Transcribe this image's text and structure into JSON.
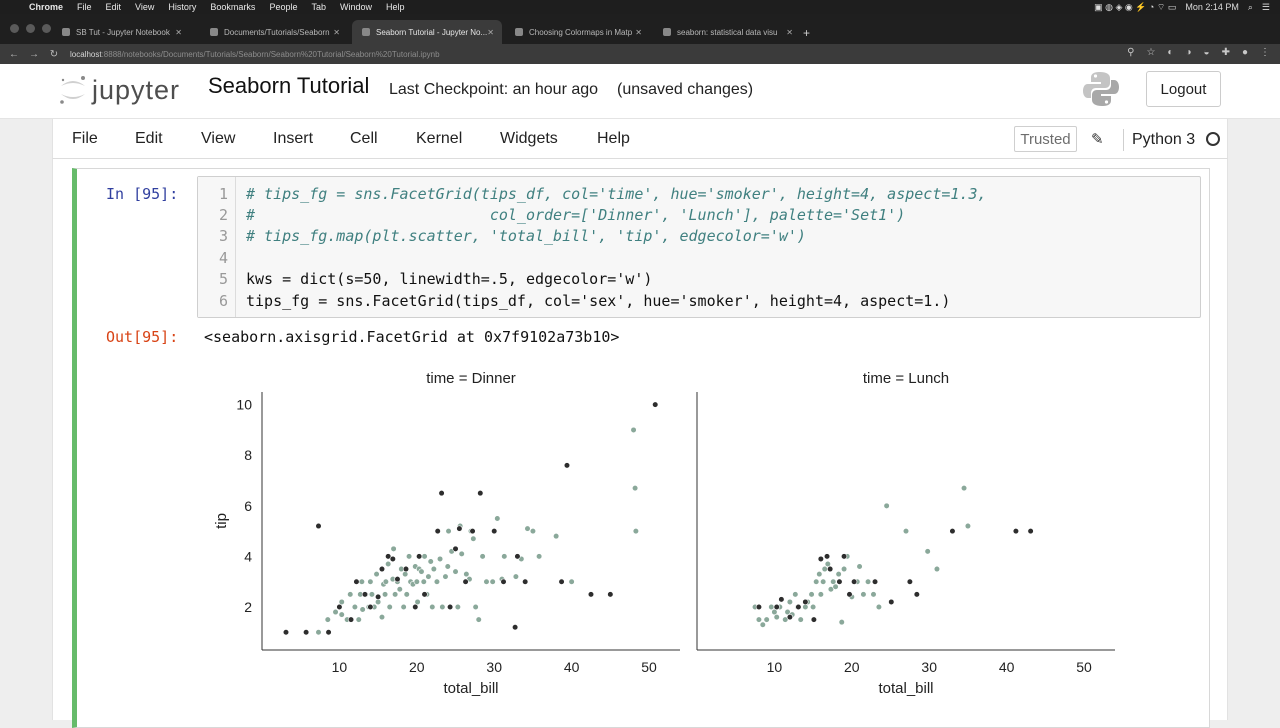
{
  "macbar": {
    "app": "Chrome",
    "menus": [
      "File",
      "Edit",
      "View",
      "History",
      "Bookmarks",
      "People",
      "Tab",
      "Window",
      "Help"
    ],
    "clock": "Mon 2:14 PM"
  },
  "tabs": [
    {
      "label": "SB Tut - Jupyter Notebook"
    },
    {
      "label": "Documents/Tutorials/Seaborn"
    },
    {
      "label": "Seaborn Tutorial - Jupyter No..."
    },
    {
      "label": "Choosing Colormaps in Matp"
    },
    {
      "label": "seaborn: statistical data visu"
    }
  ],
  "address": {
    "host": "localhost",
    "path": ":8888/notebooks/Documents/Tutorials/Seaborn/Seaborn%20Tutorial/Seaborn%20Tutorial.ipynb"
  },
  "header": {
    "logo_text": "jupyter",
    "notebook_title": "Seaborn Tutorial",
    "checkpoint": "Last Checkpoint: an hour ago",
    "unsaved": "(unsaved changes)",
    "logout": "Logout"
  },
  "menu": {
    "items": [
      "File",
      "Edit",
      "View",
      "Insert",
      "Cell",
      "Kernel",
      "Widgets",
      "Help"
    ],
    "trusted": "Trusted",
    "kernel_name": "Python 3"
  },
  "cell": {
    "in_prompt": "In [95]:",
    "out_prompt": "Out[95]:",
    "lines": [
      {
        "n": "1",
        "text": "# tips_fg = sns.FacetGrid(tips_df, col='time', hue='smoker', height=4, aspect=1.3,",
        "comment": true
      },
      {
        "n": "2",
        "text": "#                          col_order=['Dinner', 'Lunch'], palette='Set1')",
        "comment": true
      },
      {
        "n": "3",
        "text": "# tips_fg.map(plt.scatter, 'total_bill', 'tip', edgecolor='w')",
        "comment": true
      },
      {
        "n": "4",
        "text": "",
        "comment": false
      },
      {
        "n": "5",
        "text": "kws = dict(s=50, linewidth=.5, edgecolor='w')",
        "comment": false
      },
      {
        "n": "6",
        "text": "tips_fg = sns.FacetGrid(tips_df, col='sex', hue='smoker', height=4, aspect=1.)",
        "comment": false
      }
    ],
    "output_repr": "<seaborn.axisgrid.FacetGrid at 0x7f9102a73b10>"
  },
  "chart_data": {
    "type": "scatter",
    "xlabel": "total_bill",
    "ylabel": "tip",
    "xlim": [
      0,
      54
    ],
    "ylim": [
      0.3,
      10.5
    ],
    "xticks": [
      10,
      20,
      30,
      40,
      50
    ],
    "yticks": [
      2,
      4,
      6,
      8,
      10
    ],
    "colors": {
      "No": "#8aa89a",
      "Yes": "#2d2d2d"
    },
    "facets": [
      {
        "title": "time = Dinner",
        "series": [
          {
            "color_key": "No",
            "points": [
              [
                3.1,
                1
              ],
              [
                7.3,
                1
              ],
              [
                8.5,
                1.5
              ],
              [
                9.5,
                1.8
              ],
              [
                10.3,
                1.7
              ],
              [
                10.3,
                2.2
              ],
              [
                11,
                1.5
              ],
              [
                11.4,
                2.5
              ],
              [
                12,
                2
              ],
              [
                12.5,
                1.5
              ],
              [
                12.7,
                2.5
              ],
              [
                12.9,
                3
              ],
              [
                13,
                1.9
              ],
              [
                13.4,
                2.5
              ],
              [
                13.8,
                2
              ],
              [
                14,
                3
              ],
              [
                14.2,
                2.5
              ],
              [
                14.5,
                2
              ],
              [
                14.8,
                3.3
              ],
              [
                15,
                2.2
              ],
              [
                15.5,
                1.6
              ],
              [
                15.7,
                2.9
              ],
              [
                15.9,
                2.5
              ],
              [
                16,
                3
              ],
              [
                16.3,
                3.7
              ],
              [
                16.5,
                2
              ],
              [
                16.9,
                3.1
              ],
              [
                17,
                4.3
              ],
              [
                17.2,
                2.5
              ],
              [
                17.5,
                3
              ],
              [
                17.8,
                2.7
              ],
              [
                18,
                3.5
              ],
              [
                18.3,
                2
              ],
              [
                18.5,
                3.3
              ],
              [
                18.7,
                2.5
              ],
              [
                19,
                4
              ],
              [
                19.2,
                3
              ],
              [
                19.5,
                2.9
              ],
              [
                19.8,
                3.6
              ],
              [
                20,
                3
              ],
              [
                20.1,
                2.2
              ],
              [
                20.3,
                3.5
              ],
              [
                20.6,
                3.4
              ],
              [
                20.9,
                3
              ],
              [
                21,
                4
              ],
              [
                21.3,
                2.5
              ],
              [
                21.5,
                3.2
              ],
              [
                21.8,
                3.8
              ],
              [
                22,
                2
              ],
              [
                22.2,
                3.5
              ],
              [
                22.6,
                3
              ],
              [
                23,
                3.9
              ],
              [
                23.3,
                2
              ],
              [
                23.7,
                3.2
              ],
              [
                24,
                3.6
              ],
              [
                24.1,
                5
              ],
              [
                24.5,
                4.2
              ],
              [
                25,
                3.4
              ],
              [
                25.3,
                2
              ],
              [
                25.6,
                5.2
              ],
              [
                25.8,
                4.1
              ],
              [
                26.4,
                3.3
              ],
              [
                26.8,
                3.1
              ],
              [
                27,
                5
              ],
              [
                27.3,
                4.7
              ],
              [
                27.6,
                2
              ],
              [
                28,
                1.5
              ],
              [
                28.5,
                4
              ],
              [
                29,
                3
              ],
              [
                29.8,
                3
              ],
              [
                30.4,
                5.5
              ],
              [
                31,
                3.1
              ],
              [
                31.3,
                4
              ],
              [
                32.8,
                3.2
              ],
              [
                33.5,
                3.9
              ],
              [
                34.3,
                5.1
              ],
              [
                35,
                5
              ],
              [
                35.8,
                4
              ],
              [
                38,
                4.8
              ],
              [
                40,
                3
              ],
              [
                48,
                9
              ],
              [
                48.2,
                6.7
              ],
              [
                48.3,
                5
              ]
            ]
          },
          {
            "color_key": "Yes",
            "points": [
              [
                3.1,
                1
              ],
              [
                5.7,
                1
              ],
              [
                7.3,
                5.2
              ],
              [
                8.6,
                1
              ],
              [
                10,
                2
              ],
              [
                11.5,
                1.5
              ],
              [
                12.2,
                3
              ],
              [
                13.3,
                2.5
              ],
              [
                14,
                2
              ],
              [
                15,
                2.4
              ],
              [
                15.5,
                3.5
              ],
              [
                16.3,
                4
              ],
              [
                16.9,
                3.9
              ],
              [
                17.5,
                3.1
              ],
              [
                18.6,
                3.5
              ],
              [
                19.8,
                2
              ],
              [
                20.3,
                4
              ],
              [
                21,
                2.5
              ],
              [
                22.7,
                5
              ],
              [
                23.2,
                6.5
              ],
              [
                24.3,
                2
              ],
              [
                25,
                4.3
              ],
              [
                25.5,
                5.1
              ],
              [
                26.3,
                3
              ],
              [
                27.2,
                5
              ],
              [
                28.2,
                6.5
              ],
              [
                30,
                5
              ],
              [
                31.2,
                3
              ],
              [
                32.7,
                1.2
              ],
              [
                33,
                4
              ],
              [
                34,
                3
              ],
              [
                38.7,
                3
              ],
              [
                39.4,
                7.6
              ],
              [
                42.5,
                2.5
              ],
              [
                45,
                2.5
              ],
              [
                50.8,
                10
              ]
            ]
          }
        ]
      },
      {
        "title": "time = Lunch",
        "series": [
          {
            "color_key": "No",
            "points": [
              [
                7.5,
                2
              ],
              [
                8,
                1.5
              ],
              [
                8.5,
                1.3
              ],
              [
                9,
                1.5
              ],
              [
                9.6,
                2
              ],
              [
                10,
                1.8
              ],
              [
                10.3,
                1.6
              ],
              [
                10.7,
                2
              ],
              [
                11.4,
                1.5
              ],
              [
                11.7,
                1.8
              ],
              [
                12,
                2.2
              ],
              [
                12.3,
                1.7
              ],
              [
                12.7,
                2.5
              ],
              [
                13,
                2
              ],
              [
                13.4,
                1.5
              ],
              [
                14,
                2
              ],
              [
                14.3,
                2.2
              ],
              [
                14.8,
                2.5
              ],
              [
                15,
                2
              ],
              [
                15.4,
                3
              ],
              [
                15.8,
                3.3
              ],
              [
                16,
                2.5
              ],
              [
                16.3,
                3
              ],
              [
                16.5,
                3.5
              ],
              [
                16.9,
                3.7
              ],
              [
                17.3,
                2.7
              ],
              [
                17.6,
                3
              ],
              [
                17.9,
                2.8
              ],
              [
                18.3,
                3.3
              ],
              [
                18.7,
                1.4
              ],
              [
                19,
                3.5
              ],
              [
                19.4,
                4
              ],
              [
                20,
                2.4
              ],
              [
                20.7,
                3
              ],
              [
                21,
                3.6
              ],
              [
                21.5,
                2.5
              ],
              [
                22.1,
                3
              ],
              [
                22.8,
                2.5
              ],
              [
                23.5,
                2
              ],
              [
                24.5,
                6
              ],
              [
                27,
                5
              ],
              [
                29.8,
                4.2
              ],
              [
                31,
                3.5
              ],
              [
                34.5,
                6.7
              ],
              [
                35,
                5.2
              ]
            ]
          },
          {
            "color_key": "Yes",
            "points": [
              [
                8,
                2
              ],
              [
                10.3,
                2
              ],
              [
                10.9,
                2.3
              ],
              [
                12,
                1.6
              ],
              [
                13.1,
                2
              ],
              [
                14,
                2.2
              ],
              [
                15.1,
                1.5
              ],
              [
                16,
                3.9
              ],
              [
                16.8,
                4
              ],
              [
                17.2,
                3.5
              ],
              [
                18.4,
                3
              ],
              [
                19,
                4
              ],
              [
                19.7,
                2.5
              ],
              [
                20.3,
                3
              ],
              [
                23,
                3
              ],
              [
                25.1,
                2.2
              ],
              [
                27.5,
                3
              ],
              [
                28.4,
                2.5
              ],
              [
                33,
                5
              ],
              [
                41.2,
                5
              ],
              [
                43.1,
                5
              ]
            ]
          }
        ]
      }
    ]
  }
}
